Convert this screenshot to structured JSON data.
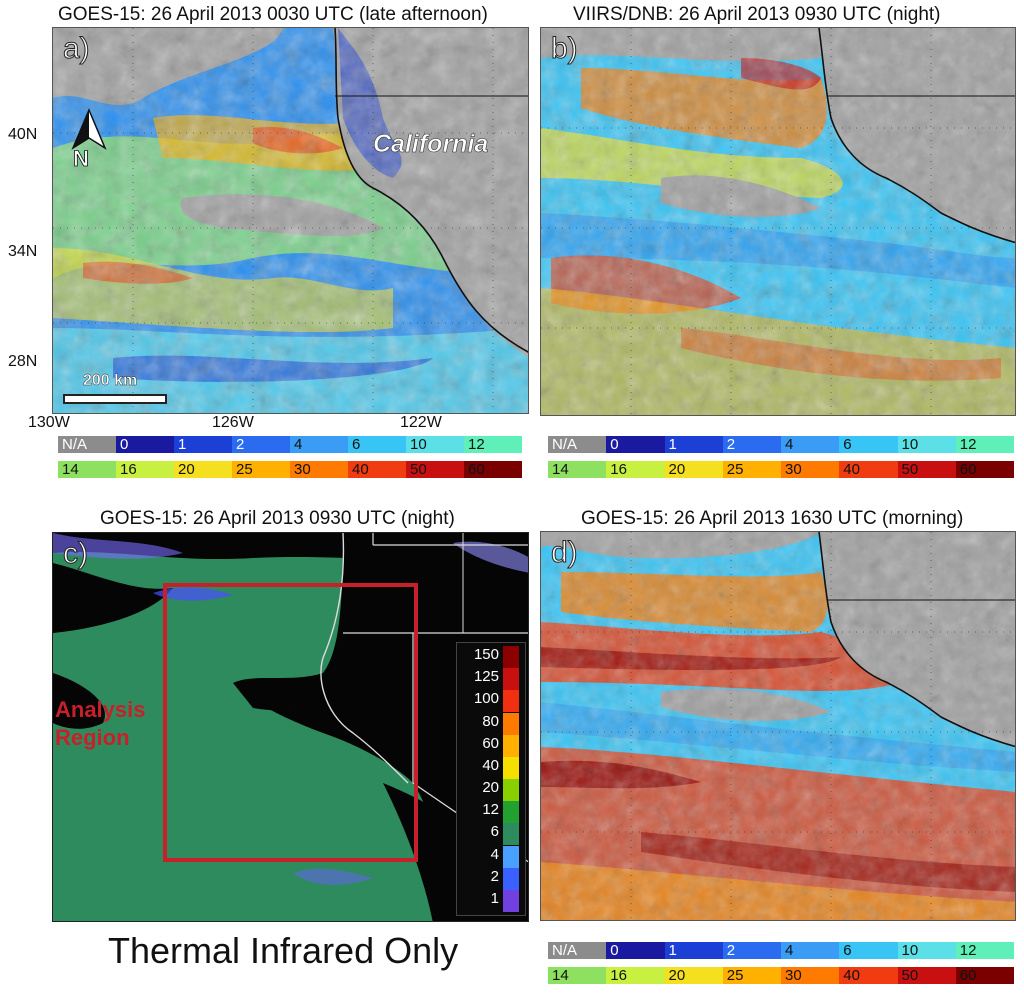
{
  "panels": {
    "a": {
      "title": "GOES-15:  26 April 2013 0030 UTC (late afternoon)",
      "letter": "a)",
      "region_label": "California",
      "scale_label": "200 km",
      "north_label": "N"
    },
    "b": {
      "title": "VIIRS/DNB: 26 April 2013 0930 UTC (night)",
      "letter": "b)"
    },
    "c": {
      "title": "GOES-15: 26 April 2013 0930 UTC (night)",
      "letter": "c)",
      "analysis_label_line1": "Analysis",
      "analysis_label_line2": "Region",
      "legend_levels": [
        "150",
        "125",
        "100",
        "80",
        "60",
        "40",
        "20",
        "12",
        "6",
        "4",
        "2",
        "1"
      ],
      "legend_colors": [
        "#8b0000",
        "#c81010",
        "#f03010",
        "#ff7a00",
        "#ffb000",
        "#f5e000",
        "#8ad000",
        "#22a030",
        "#2e8b5e",
        "#4aa0ff",
        "#3a60ff",
        "#7040e0"
      ]
    },
    "d": {
      "title": "GOES-15: 26 April 2013 1630 UTC (morning)",
      "letter": "d)"
    }
  },
  "lat_labels": [
    "40N",
    "34N",
    "28N"
  ],
  "lon_labels": [
    "130W",
    "126W",
    "122W"
  ],
  "map_lat_ticks": [
    "44",
    "42",
    "40",
    "38",
    "36",
    "34",
    "32",
    "30",
    "28",
    "26"
  ],
  "map_lon_ticks": [
    "-130",
    "-129",
    "-128",
    "-127",
    "-126",
    "-125",
    "-124",
    "-123",
    "-122",
    "-121",
    "-12"
  ],
  "colorbar": {
    "row1": [
      {
        "label": "N/A",
        "color": "#8c8c8c"
      },
      {
        "label": "0",
        "color": "#1a1aa0"
      },
      {
        "label": "1",
        "color": "#1c3fd6"
      },
      {
        "label": "2",
        "color": "#2a6bf0"
      },
      {
        "label": "4",
        "color": "#3a9cf5"
      },
      {
        "label": "6",
        "color": "#38c4f5"
      },
      {
        "label": "10",
        "color": "#5ce0e8"
      },
      {
        "label": "12",
        "color": "#5ef0b8"
      }
    ],
    "row2": [
      {
        "label": "14",
        "color": "#8ee060"
      },
      {
        "label": "16",
        "color": "#c8f040"
      },
      {
        "label": "20",
        "color": "#f5e020"
      },
      {
        "label": "25",
        "color": "#ffb000"
      },
      {
        "label": "30",
        "color": "#ff7a00"
      },
      {
        "label": "40",
        "color": "#f03c10"
      },
      {
        "label": "50",
        "color": "#c81010"
      },
      {
        "label": "60",
        "color": "#7a0000"
      }
    ]
  },
  "caption": "Thermal Infrared Only",
  "colors": {
    "land": "#a0a0a0",
    "ir_ocean": "#2e8b5e",
    "analysis_box": "#c8202a"
  }
}
